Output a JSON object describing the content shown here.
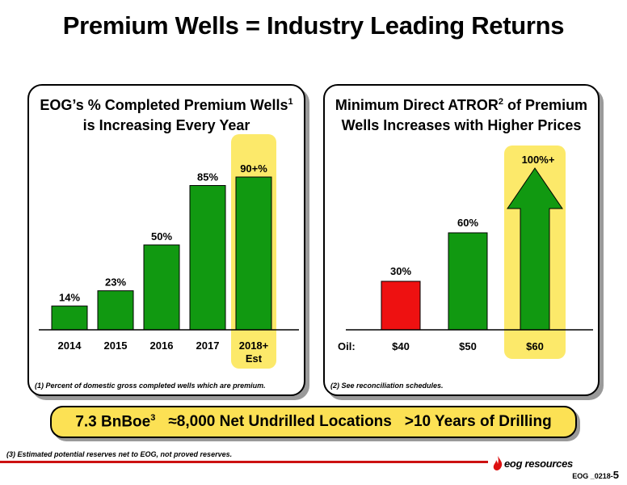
{
  "title": "Premium Wells = Industry Leading Returns",
  "left": {
    "title_line1": "EOG’s % Completed Premium Wells",
    "title_sup": "1",
    "title_line2": "is Increasing Every Year",
    "footnote": "(1) Percent of domestic gross completed wells which are premium.",
    "highlight_color": "#fce96a"
  },
  "right": {
    "title_line1_a": "Minimum Direct ATROR",
    "title_sup": "2",
    "title_line1_b": " of Premium",
    "title_line2": "Wells Increases with Higher Prices",
    "footnote": "(2) See reconciliation schedules.",
    "axis_prefix": "Oil:",
    "highlight_color": "#fce96a"
  },
  "chart_data": [
    {
      "type": "bar",
      "title": "EOG’s % Completed Premium Wells is Increasing Every Year",
      "categories": [
        [
          "2014"
        ],
        [
          "2015"
        ],
        [
          "2016"
        ],
        [
          "2017"
        ],
        [
          "2018+",
          "Est"
        ]
      ],
      "values": [
        14,
        23,
        50,
        85,
        90
      ],
      "labels": [
        "14%",
        "23%",
        "50%",
        "85%",
        "90+%"
      ],
      "colors": [
        "#119911",
        "#119911",
        "#119911",
        "#119911",
        "#119911"
      ],
      "highlight_index": 4,
      "ylim": [
        0,
        100
      ]
    },
    {
      "type": "bar",
      "title": "Minimum Direct ATROR of Premium Wells Increases with Higher Prices",
      "categories": [
        "$40",
        "$50",
        "$60"
      ],
      "values": [
        30,
        60,
        100
      ],
      "labels": [
        "30%",
        "60%",
        "100%+"
      ],
      "colors": [
        "#ee1111",
        "#119911",
        "#119911"
      ],
      "arrow_index": 2,
      "highlight_index": 2,
      "ylim": [
        0,
        100
      ]
    }
  ],
  "banner": {
    "item1": "7.3 BnBoe",
    "item1_sup": "3",
    "item2": "≈8,000 Net Undrilled Locations",
    "item3": ">10 Years of Drilling"
  },
  "bottom_note": "(3)   Estimated potential reserves net to EOG, not proved reserves.",
  "logo_text": "eog resources",
  "page_ref": "EOG _0218-",
  "page_num": "5"
}
